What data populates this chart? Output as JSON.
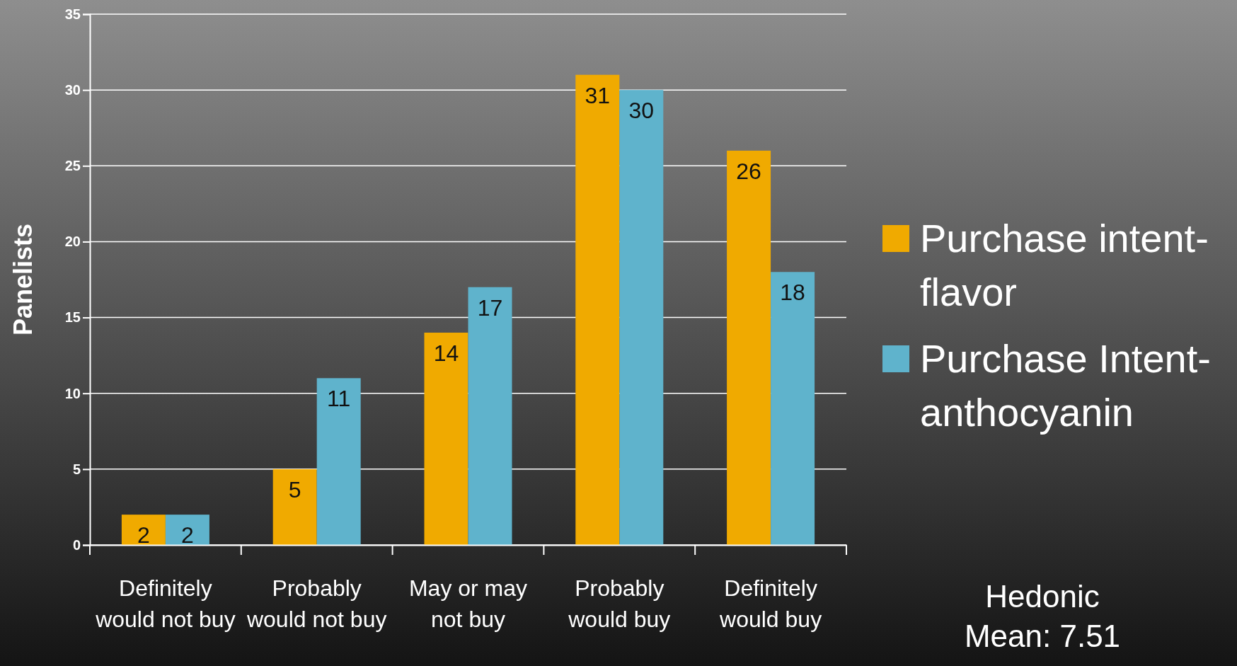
{
  "chart_data": {
    "type": "bar",
    "ylabel": "Panelists",
    "categories": [
      "Definitely would not buy",
      "Probably would not buy",
      "May or may not buy",
      "Probably would buy",
      "Definitely would buy"
    ],
    "series": [
      {
        "name": "Purchase intent-flavor",
        "color": "#f0aa00",
        "values": [
          2,
          5,
          14,
          31,
          26
        ]
      },
      {
        "name": "Purchase Intent-anthocyanin",
        "color": "#5fb3cc",
        "values": [
          2,
          11,
          17,
          30,
          18
        ]
      }
    ],
    "ylim": [
      0,
      35
    ],
    "yticks": [
      0,
      5,
      10,
      15,
      20,
      25,
      30,
      35
    ],
    "grid": "y",
    "legend": "right",
    "data_labels": true,
    "annotations": [
      "Hedonic Mean: 7.51"
    ]
  }
}
